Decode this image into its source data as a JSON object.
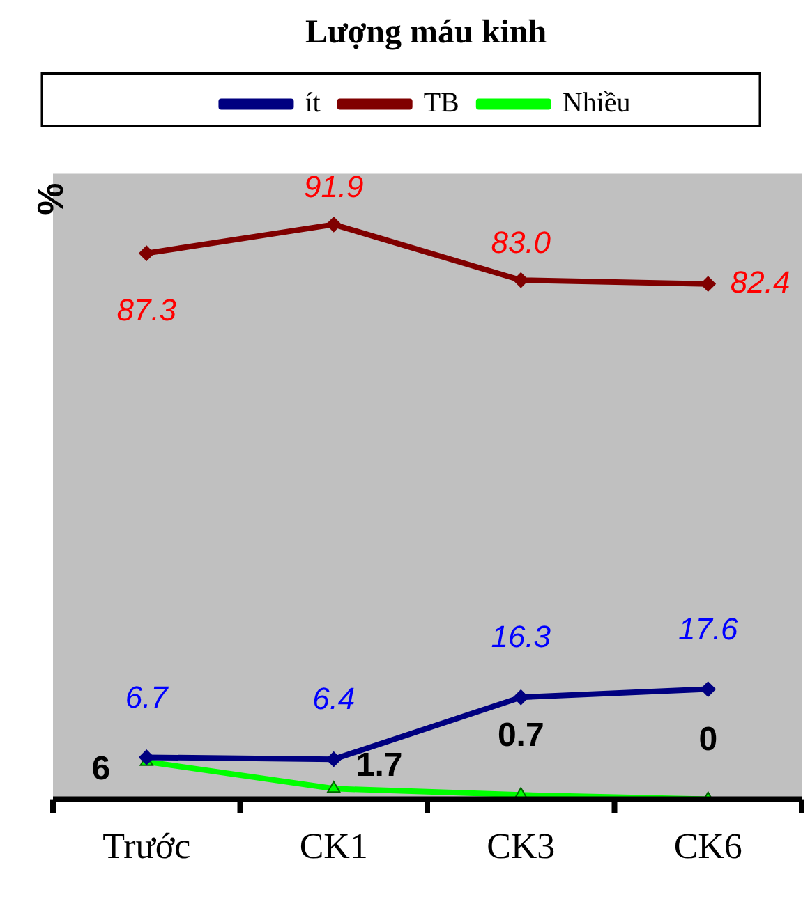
{
  "chart_data": {
    "type": "line",
    "title": "Lượng máu kinh",
    "ylabel": "%",
    "categories": [
      "Trước",
      "CK1",
      "CK3",
      "CK6"
    ],
    "series": [
      {
        "name": "ít",
        "color": "#000080",
        "marker": "diamond",
        "values": [
          6.7,
          6.4,
          16.3,
          17.6
        ],
        "value_labels": [
          "6.7",
          "6.4",
          "16.3",
          "17.6"
        ]
      },
      {
        "name": "TB",
        "color": "#800000",
        "marker": "diamond",
        "values": [
          87.3,
          91.9,
          83.0,
          82.4
        ],
        "value_labels": [
          "87.3",
          "91.9",
          "83.0",
          "82.4"
        ]
      },
      {
        "name": "Nhiều",
        "color": "#00ff00",
        "marker": "triangle",
        "values": [
          6,
          1.7,
          0.7,
          0
        ],
        "value_labels": [
          "6",
          "1.7",
          "0.7",
          "0"
        ]
      }
    ],
    "legend": "top",
    "grid": false,
    "tick_labels": "x"
  }
}
